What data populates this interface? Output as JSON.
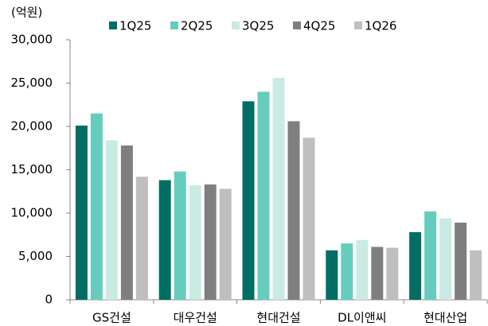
{
  "chart_data": {
    "type": "bar",
    "y_axis_label": "(억원)",
    "categories": [
      "GS건설",
      "대우건설",
      "현대건설",
      "DL이앤씨",
      "현대산업"
    ],
    "series": [
      {
        "name": "1Q25",
        "color": "#006e64",
        "values": [
          20100,
          13800,
          22900,
          5700,
          7800
        ]
      },
      {
        "name": "2Q25",
        "color": "#66cdbe",
        "values": [
          21500,
          14800,
          24000,
          6500,
          10200
        ]
      },
      {
        "name": "3Q25",
        "color": "#c9ebe3",
        "values": [
          18400,
          13200,
          25600,
          6900,
          9400
        ]
      },
      {
        "name": "4Q25",
        "color": "#7f7f7f",
        "values": [
          17800,
          13300,
          20600,
          6100,
          8900
        ]
      },
      {
        "name": "1Q26",
        "color": "#bfbfbf",
        "values": [
          14200,
          12800,
          18700,
          6000,
          5700
        ]
      }
    ],
    "ylim": [
      0,
      30000
    ],
    "yticks": [
      0,
      {
        "value": 5000,
        "label": "5,000"
      },
      {
        "value": 10000,
        "label": "10,000"
      },
      {
        "value": 15000,
        "label": "15,000"
      },
      {
        "value": 20000,
        "label": "20,000"
      },
      {
        "value": 25000,
        "label": "25,000"
      },
      {
        "value": 30000,
        "label": "30,000"
      }
    ],
    "legend": "top"
  }
}
